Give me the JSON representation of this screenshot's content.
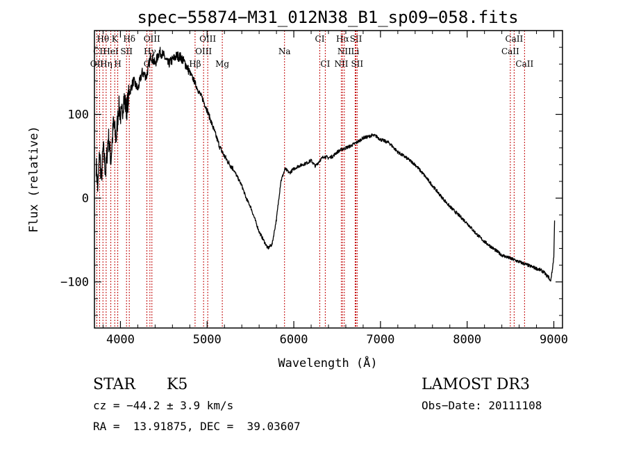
{
  "chart_data": {
    "type": "line",
    "title": "spec−55874−M31_012N38_B1_sp09−058.fits",
    "xlabel": "Wavelength (Å)",
    "ylabel": "Flux (relative)",
    "xlim": [
      3700,
      9100
    ],
    "ylim": [
      -155,
      200
    ],
    "xticks": [
      4000,
      5000,
      6000,
      7000,
      8000,
      9000
    ],
    "xtick_labels": [
      "4000",
      "5000",
      "6000",
      "7000",
      "8000",
      "9000"
    ],
    "yticks": [
      -100,
      0,
      100
    ],
    "ytick_labels": [
      "−100",
      "0",
      "100"
    ],
    "series": [
      {
        "name": "flux",
        "x": [
          3720,
          3740,
          3760,
          3780,
          3800,
          3830,
          3860,
          3890,
          3920,
          3950,
          3980,
          4010,
          4040,
          4070,
          4100,
          4150,
          4200,
          4250,
          4300,
          4350,
          4400,
          4450,
          4500,
          4550,
          4600,
          4650,
          4700,
          4750,
          4800,
          4850,
          4900,
          4950,
          5000,
          5050,
          5100,
          5150,
          5200,
          5250,
          5300,
          5350,
          5400,
          5450,
          5500,
          5550,
          5600,
          5650,
          5700,
          5750,
          5800,
          5850,
          5900,
          5950,
          6000,
          6050,
          6100,
          6150,
          6200,
          6250,
          6300,
          6350,
          6400,
          6450,
          6500,
          6550,
          6600,
          6650,
          6700,
          6750,
          6800,
          6850,
          6900,
          6950,
          7000,
          7100,
          7200,
          7300,
          7400,
          7500,
          7600,
          7700,
          7800,
          7900,
          8000,
          8100,
          8200,
          8300,
          8400,
          8500,
          8600,
          8700,
          8800,
          8850,
          8880,
          8900,
          8920,
          8940,
          8960,
          8980,
          9000,
          9010
        ],
        "y": [
          40,
          10,
          55,
          20,
          60,
          30,
          75,
          45,
          90,
          70,
          110,
          95,
          120,
          105,
          125,
          140,
          130,
          150,
          145,
          170,
          160,
          175,
          170,
          160,
          165,
          170,
          168,
          160,
          150,
          140,
          128,
          118,
          105,
          90,
          75,
          60,
          50,
          42,
          35,
          25,
          15,
          0,
          -10,
          -25,
          -40,
          -50,
          -60,
          -55,
          -25,
          20,
          35,
          30,
          35,
          38,
          40,
          42,
          45,
          38,
          45,
          50,
          48,
          50,
          55,
          58,
          60,
          62,
          65,
          68,
          72,
          73,
          75,
          74,
          70,
          66,
          55,
          48,
          40,
          28,
          15,
          2,
          -10,
          -20,
          -30,
          -42,
          -52,
          -60,
          -68,
          -72,
          -76,
          -80,
          -84,
          -86,
          -88,
          -90,
          -93,
          -94,
          -100,
          -88,
          -70,
          -20
        ]
      }
    ],
    "lines": [
      {
        "label": "Hθ",
        "x": 3798,
        "row": 0
      },
      {
        "label": "K",
        "x": 3934,
        "row": 0
      },
      {
        "label": "Hδ",
        "x": 4102,
        "row": 0
      },
      {
        "label": "OIII",
        "x": 4363,
        "row": 0
      },
      {
        "label": "OIII",
        "x": 5007,
        "row": 0
      },
      {
        "label": "CI",
        "x": 6300,
        "row": 0
      },
      {
        "label": "Hα",
        "x": 6563,
        "row": 0
      },
      {
        "label": "SII",
        "x": 6717,
        "row": 0
      },
      {
        "label": "CaII",
        "x": 8542,
        "row": 0
      },
      {
        "label": "CII",
        "x": 3760,
        "row": 1
      },
      {
        "label": "HeI",
        "x": 3889,
        "row": 1
      },
      {
        "label": "SII",
        "x": 4070,
        "row": 1
      },
      {
        "label": "Hγ",
        "x": 4340,
        "row": 1
      },
      {
        "label": "OIII",
        "x": 4959,
        "row": 1
      },
      {
        "label": "Na",
        "x": 5893,
        "row": 1
      },
      {
        "label": "NII",
        "x": 6583,
        "row": 1
      },
      {
        "label": "Li",
        "x": 6708,
        "row": 1
      },
      {
        "label": "CaII",
        "x": 8498,
        "row": 1
      },
      {
        "label": "OII",
        "x": 3727,
        "row": 2
      },
      {
        "label": "Hη",
        "x": 3835,
        "row": 2
      },
      {
        "label": "H",
        "x": 3969,
        "row": 2
      },
      {
        "label": "G",
        "x": 4305,
        "row": 2
      },
      {
        "label": "Hβ",
        "x": 4861,
        "row": 2
      },
      {
        "label": "Mg",
        "x": 5175,
        "row": 2
      },
      {
        "label": "CI",
        "x": 6363,
        "row": 2
      },
      {
        "label": "NII",
        "x": 6548,
        "row": 2
      },
      {
        "label": "SII",
        "x": 6731,
        "row": 2
      },
      {
        "label": "CaII",
        "x": 8662,
        "row": 2
      }
    ]
  },
  "footer": {
    "object_class": "STAR",
    "subclass": "K5",
    "survey": "LAMOST DR3",
    "redshift_line": "cz = −44.2 ± 3.9 km/s",
    "obs_date": "Obs−Date: 20111108",
    "coords_line": "RA =  13.91875, DEC =  39.03607"
  }
}
